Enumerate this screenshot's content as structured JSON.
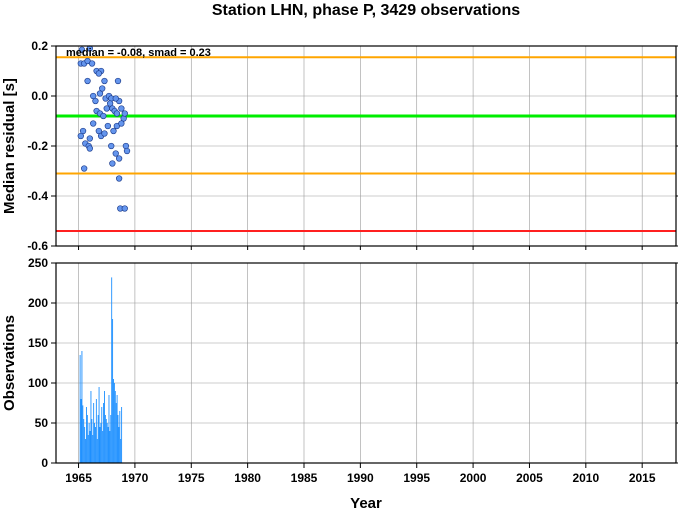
{
  "chart_data": [
    {
      "type": "scatter",
      "title": "Station LHN, phase P, 3429 observations",
      "xlabel": "",
      "ylabel": "Median residual [s]",
      "annotation": "median = -0.08, smad = 0.23",
      "xlim": [
        1963,
        2018
      ],
      "ylim": [
        -0.6,
        0.2
      ],
      "yticks": [
        0.2,
        0.0,
        -0.2,
        -0.4,
        -0.6
      ],
      "ytick_labels": [
        "0.2",
        "0.0",
        "-0.2",
        "-0.4",
        "-0.6"
      ],
      "grid": true,
      "reference_lines": [
        {
          "y": -0.08,
          "color": "#00ee00"
        },
        {
          "y": 0.155,
          "color": "#ffa500"
        },
        {
          "y": -0.31,
          "color": "#ffa500"
        },
        {
          "y": -0.54,
          "color": "#ff2020"
        }
      ],
      "point_color": "#6495ed",
      "points": [
        [
          1965.3,
          0.185
        ],
        [
          1965.2,
          0.13
        ],
        [
          1965.5,
          0.13
        ],
        [
          1965.8,
          0.14
        ],
        [
          1966.0,
          0.19
        ],
        [
          1966.2,
          0.13
        ],
        [
          1965.8,
          0.06
        ],
        [
          1966.6,
          0.1
        ],
        [
          1967.0,
          0.1
        ],
        [
          1966.8,
          0.09
        ],
        [
          1967.3,
          0.06
        ],
        [
          1968.5,
          0.06
        ],
        [
          1966.3,
          0.0
        ],
        [
          1966.5,
          -0.02
        ],
        [
          1966.9,
          0.01
        ],
        [
          1967.1,
          0.03
        ],
        [
          1967.4,
          -0.01
        ],
        [
          1967.7,
          0.0
        ],
        [
          1967.9,
          -0.01
        ],
        [
          1966.6,
          -0.06
        ],
        [
          1966.9,
          -0.07
        ],
        [
          1967.2,
          -0.08
        ],
        [
          1967.5,
          -0.05
        ],
        [
          1967.8,
          -0.03
        ],
        [
          1968.0,
          -0.05
        ],
        [
          1968.2,
          -0.06
        ],
        [
          1968.4,
          -0.07
        ],
        [
          1968.6,
          -0.02
        ],
        [
          1968.8,
          -0.05
        ],
        [
          1969.0,
          -0.09
        ],
        [
          1969.1,
          -0.07
        ],
        [
          1968.3,
          -0.01
        ],
        [
          1965.4,
          -0.14
        ],
        [
          1965.2,
          -0.16
        ],
        [
          1966.0,
          -0.17
        ],
        [
          1966.8,
          -0.14
        ],
        [
          1967.0,
          -0.16
        ],
        [
          1967.3,
          -0.15
        ],
        [
          1967.6,
          -0.12
        ],
        [
          1968.1,
          -0.14
        ],
        [
          1968.4,
          -0.12
        ],
        [
          1968.8,
          -0.11
        ],
        [
          1966.3,
          -0.11
        ],
        [
          1965.6,
          -0.19
        ],
        [
          1965.9,
          -0.2
        ],
        [
          1966.0,
          -0.21
        ],
        [
          1967.9,
          -0.2
        ],
        [
          1968.6,
          -0.25
        ],
        [
          1968.3,
          -0.23
        ],
        [
          1969.2,
          -0.2
        ],
        [
          1969.3,
          -0.22
        ],
        [
          1968.0,
          -0.27
        ],
        [
          1965.5,
          -0.29
        ],
        [
          1968.6,
          -0.33
        ],
        [
          1968.7,
          -0.45
        ],
        [
          1969.1,
          -0.45
        ]
      ]
    },
    {
      "type": "bar",
      "xlabel": "Year",
      "ylabel": "Observations",
      "xlim": [
        1963,
        2018
      ],
      "ylim": [
        0,
        250
      ],
      "yticks": [
        0,
        50,
        100,
        150,
        200,
        250
      ],
      "xticks": [
        1965,
        1970,
        1975,
        1980,
        1985,
        1990,
        1995,
        2000,
        2005,
        2010,
        2015
      ],
      "grid": true,
      "bar_color": "#1e90ff",
      "x_start": 1965.1,
      "bin_width": 0.08,
      "values": [
        135,
        80,
        140,
        72,
        55,
        45,
        30,
        70,
        60,
        35,
        50,
        40,
        90,
        55,
        35,
        75,
        50,
        45,
        80,
        30,
        60,
        95,
        45,
        50,
        70,
        40,
        75,
        90,
        60,
        55,
        50,
        45,
        85,
        40,
        60,
        232,
        180,
        105,
        100,
        90,
        75,
        85,
        60,
        45,
        65,
        30,
        70
      ]
    }
  ]
}
